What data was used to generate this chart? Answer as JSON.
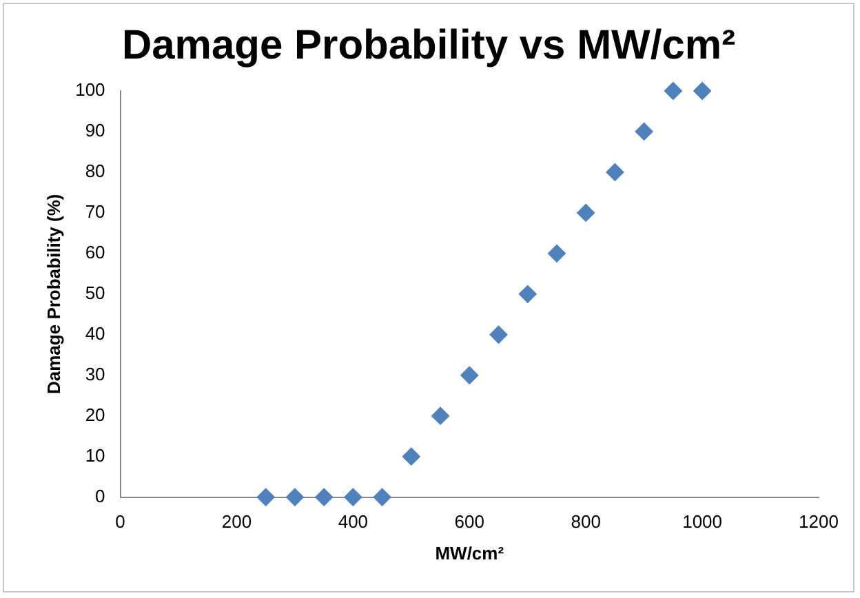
{
  "chart_data": {
    "type": "scatter",
    "title": "Damage Probability vs MW/cm²",
    "xlabel": "MW/cm²",
    "ylabel": "Damage Probability (%)",
    "x": [
      250,
      300,
      350,
      400,
      450,
      500,
      550,
      600,
      650,
      700,
      750,
      800,
      850,
      900,
      950,
      1000
    ],
    "series": [
      {
        "color": "#4f81bd",
        "values": [
          0,
          0,
          0,
          0,
          0,
          10,
          20,
          30,
          40,
          50,
          60,
          70,
          80,
          90,
          100,
          100
        ]
      }
    ],
    "xlim": [
      0,
      1200
    ],
    "xticks": [
      0,
      200,
      400,
      600,
      800,
      1000,
      1200
    ],
    "ylim": [
      0,
      100
    ],
    "yticks": [
      0,
      10,
      20,
      30,
      40,
      50,
      60,
      70,
      80,
      90,
      100
    ],
    "grid": false,
    "legend": false,
    "marker": "diamond"
  }
}
